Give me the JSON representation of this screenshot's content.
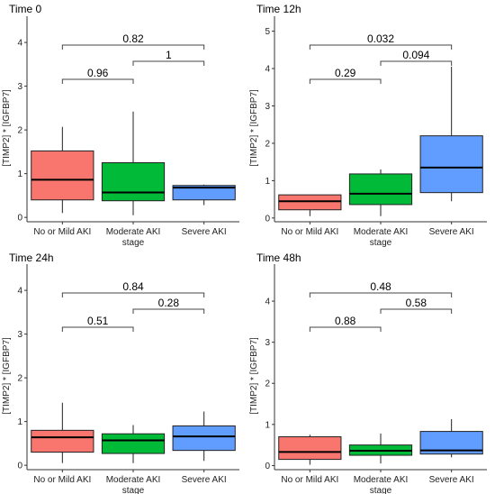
{
  "chart_data": [
    {
      "type": "boxplot",
      "title": "Time 0",
      "ylabel": "[TIMP2] * [IGFBP7]",
      "categories": [
        "No or Mild AKI",
        "Moderate AKI\nstage",
        "Severe AKI"
      ],
      "ylim": [
        -0.1,
        4.6
      ],
      "yticks": [
        0,
        1,
        2,
        3,
        4
      ],
      "series": [
        {
          "category": "No or Mild AKI",
          "color": "#F8766D",
          "whisker_low": 0.1,
          "q1": 0.4,
          "median": 0.86,
          "q3": 1.52,
          "whisker_high": 2.07
        },
        {
          "category": "Moderate AKI stage",
          "color": "#00BA38",
          "whisker_low": 0.05,
          "q1": 0.38,
          "median": 0.57,
          "q3": 1.25,
          "whisker_high": 2.42
        },
        {
          "category": "Severe AKI",
          "color": "#619CFF",
          "whisker_low": 0.28,
          "q1": 0.4,
          "median": 0.68,
          "q3": 0.73,
          "whisker_high": 0.75
        }
      ],
      "comparisons": [
        {
          "from": 0,
          "to": 2,
          "label": "0.82"
        },
        {
          "from": 1,
          "to": 2,
          "label": "1"
        },
        {
          "from": 0,
          "to": 1,
          "label": "0.96"
        }
      ]
    },
    {
      "type": "boxplot",
      "title": "Time 12h",
      "ylabel": "[TIMP2] * [IGFBP7]",
      "categories": [
        "No or Mild AKI",
        "Moderate AKI\nstage",
        "Severe AKI"
      ],
      "ylim": [
        -0.1,
        5.4
      ],
      "yticks": [
        0,
        1,
        2,
        3,
        4,
        5
      ],
      "series": [
        {
          "category": "No or Mild AKI",
          "color": "#F8766D",
          "whisker_low": 0.05,
          "q1": 0.22,
          "median": 0.45,
          "q3": 0.62,
          "whisker_high": 0.62
        },
        {
          "category": "Moderate AKI stage",
          "color": "#00BA38",
          "whisker_low": 0.05,
          "q1": 0.36,
          "median": 0.65,
          "q3": 1.18,
          "whisker_high": 1.3
        },
        {
          "category": "Severe AKI",
          "color": "#619CFF",
          "whisker_low": 0.45,
          "q1": 0.68,
          "median": 1.35,
          "q3": 2.2,
          "whisker_high": 4.05
        }
      ],
      "comparisons": [
        {
          "from": 0,
          "to": 2,
          "label": "0.032"
        },
        {
          "from": 1,
          "to": 2,
          "label": "0.094"
        },
        {
          "from": 0,
          "to": 1,
          "label": "0.29"
        }
      ]
    },
    {
      "type": "boxplot",
      "title": "Time 24h",
      "ylabel": "[TIMP2] * [IGFBP7]",
      "categories": [
        "No or Mild AKI",
        "Moderate AKI\nstage",
        "Severe AKI"
      ],
      "ylim": [
        -0.1,
        4.6
      ],
      "yticks": [
        0,
        1,
        2,
        3,
        4
      ],
      "series": [
        {
          "category": "No or Mild AKI",
          "color": "#F8766D",
          "whisker_low": 0.05,
          "q1": 0.3,
          "median": 0.64,
          "q3": 0.8,
          "whisker_high": 1.43
        },
        {
          "category": "Moderate AKI stage",
          "color": "#00BA38",
          "whisker_low": 0.05,
          "q1": 0.27,
          "median": 0.57,
          "q3": 0.72,
          "whisker_high": 0.92
        },
        {
          "category": "Severe AKI",
          "color": "#619CFF",
          "whisker_low": 0.1,
          "q1": 0.34,
          "median": 0.66,
          "q3": 0.9,
          "whisker_high": 1.23
        }
      ],
      "comparisons": [
        {
          "from": 0,
          "to": 2,
          "label": "0.84"
        },
        {
          "from": 1,
          "to": 2,
          "label": "0.28"
        },
        {
          "from": 0,
          "to": 1,
          "label": "0.51"
        }
      ]
    },
    {
      "type": "boxplot",
      "title": "Time 48h",
      "ylabel": "[TIMP2] * [IGFBP7]",
      "categories": [
        "No or Mild AKI",
        "Moderate AKI\nstage",
        "Severe AKI"
      ],
      "ylim": [
        -0.1,
        4.9
      ],
      "yticks": [
        0,
        1,
        2,
        3,
        4
      ],
      "series": [
        {
          "category": "No or Mild AKI",
          "color": "#F8766D",
          "whisker_low": 0.02,
          "q1": 0.15,
          "median": 0.33,
          "q3": 0.7,
          "whisker_high": 0.75
        },
        {
          "category": "Moderate AKI stage",
          "color": "#00BA38",
          "whisker_low": 0.05,
          "q1": 0.25,
          "median": 0.36,
          "q3": 0.5,
          "whisker_high": 0.78
        },
        {
          "category": "Severe AKI",
          "color": "#619CFF",
          "whisker_low": 0.2,
          "q1": 0.28,
          "median": 0.37,
          "q3": 0.83,
          "whisker_high": 1.13
        }
      ],
      "comparisons": [
        {
          "from": 0,
          "to": 2,
          "label": "0.48"
        },
        {
          "from": 1,
          "to": 2,
          "label": "0.58"
        },
        {
          "from": 0,
          "to": 1,
          "label": "0.88"
        }
      ]
    }
  ]
}
